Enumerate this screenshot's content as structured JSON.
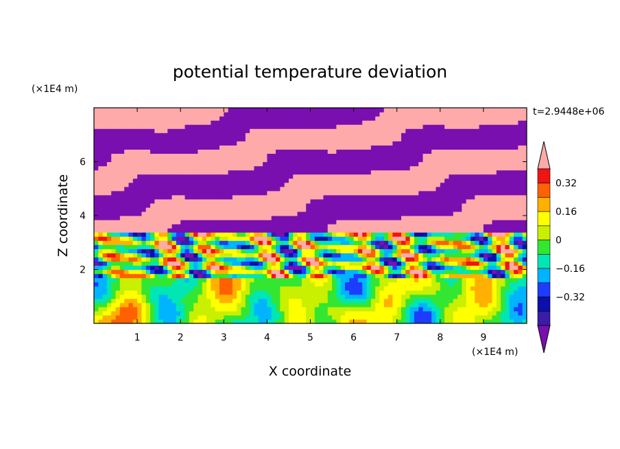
{
  "chart_data": {
    "type": "heatmap",
    "title": "potential temperature deviation",
    "xlabel": "X coordinate",
    "ylabel": "Z coordinate",
    "x_unit": "(×1E4 m)",
    "y_unit": "(×1E4 m)",
    "time_label": "t=2.9448e+06",
    "xlim": [
      0,
      10
    ],
    "ylim": [
      0,
      8
    ],
    "x_ticks": [
      1,
      2,
      3,
      4,
      5,
      6,
      7,
      8,
      9
    ],
    "y_ticks": [
      2,
      4,
      6
    ],
    "colorbar": {
      "levels": [
        -0.48,
        -0.4,
        -0.32,
        -0.24,
        -0.16,
        -0.08,
        0,
        0.08,
        0.16,
        0.24,
        0.32,
        0.4
      ],
      "labeled_levels": [
        0.32,
        0.16,
        0,
        -0.16,
        -0.32
      ],
      "labels": [
        "0.32",
        "0.16",
        "0",
        "−0.16",
        "−0.32"
      ],
      "colors_low_to_high": [
        "#7a0fb0",
        "#3a1ca8",
        "#0a10a8",
        "#1e3cff",
        "#00b4ff",
        "#00e6b4",
        "#32e632",
        "#c8f000",
        "#ffff00",
        "#ffb000",
        "#ff6000",
        "#f01414",
        "#ffaaaa"
      ],
      "extend": "both"
    },
    "colors": {
      "warm_band": "#ffaaaa",
      "cool_band": "#7a0fb0"
    }
  }
}
